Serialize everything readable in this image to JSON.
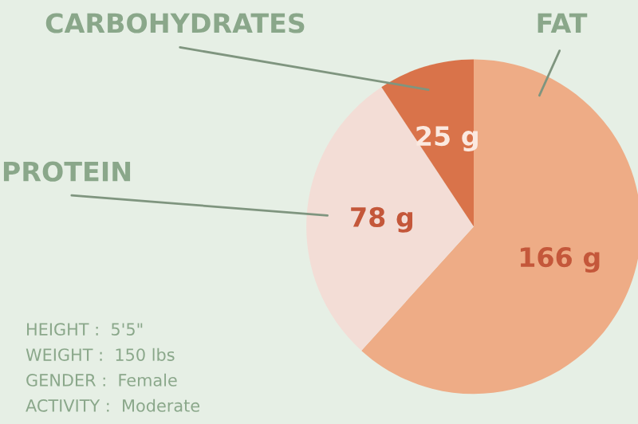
{
  "chart_data": {
    "type": "pie",
    "categories": [
      "FAT",
      "PROTEIN",
      "CARBOHYDRATES"
    ],
    "values": [
      166,
      78,
      25
    ],
    "value_labels": [
      "166 g",
      "78 g",
      "25 g"
    ],
    "colors": [
      "#eeac86",
      "#f3ddd6",
      "#d9734a"
    ],
    "annotations": [
      "HEIGHT :  5'5\"",
      "WEIGHT :  150 lbs",
      "GENDER :  Female",
      "ACTIVITY :  Moderate"
    ]
  }
}
